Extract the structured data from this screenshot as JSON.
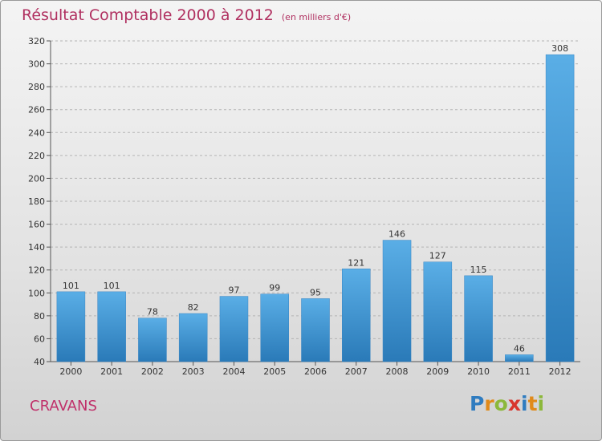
{
  "header": {
    "title": "Résultat Comptable 2000 à 2012",
    "subtitle": "(en milliers d'€)"
  },
  "footer": {
    "commune": "CRAVANS",
    "logo_text": "Proxiti",
    "logo_letters": [
      "P",
      "r",
      "o",
      "x",
      "i",
      "t",
      "i"
    ]
  },
  "colors": {
    "title": "#b03060",
    "bar_top": "#5aaee6",
    "bar_bottom": "#2a7ab8",
    "grid": "#b4b4b4"
  },
  "chart_data": {
    "type": "bar",
    "title": "Résultat Comptable 2000 à 2012",
    "subtitle": "(en milliers d'€)",
    "categories": [
      "2000",
      "2001",
      "2002",
      "2003",
      "2004",
      "2005",
      "2006",
      "2007",
      "2008",
      "2009",
      "2010",
      "2011",
      "2012"
    ],
    "values": [
      101,
      101,
      78,
      82,
      97,
      99,
      95,
      121,
      146,
      127,
      115,
      46,
      308
    ],
    "ylim": [
      40,
      320
    ],
    "yticks": [
      40,
      60,
      80,
      100,
      120,
      140,
      160,
      180,
      200,
      220,
      240,
      260,
      280,
      300,
      320
    ],
    "grid": true,
    "data_labels": true
  }
}
